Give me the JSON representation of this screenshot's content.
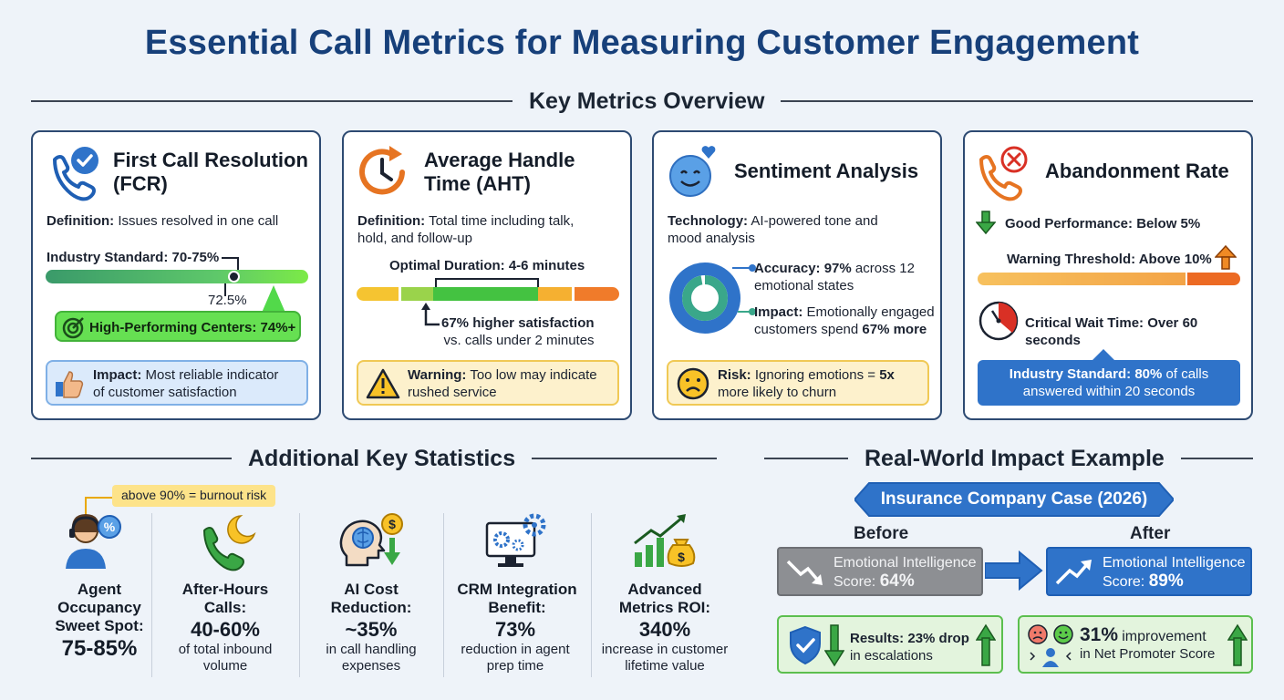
{
  "title": "Essential Call Metrics for Measuring Customer Engagement",
  "overview_title": "Key Metrics Overview",
  "fcr": {
    "title_line1": "First Call Resolution",
    "title_line2": "(FCR)",
    "definition_label": "Definition:",
    "definition_text": "Issues resolved in one call",
    "standard_label": "Industry Standard: 70-75%",
    "marker_value": "72.5%",
    "high_performing": "High-Performing Centers: 74%+",
    "impact_label": "Impact:",
    "impact_text_1": "Most reliable indicator",
    "impact_text_2": "of customer satisfaction"
  },
  "aht": {
    "title_line1": "Average Handle",
    "title_line2": "Time (AHT)",
    "definition_label": "Definition:",
    "definition_text_1": "Total time including talk,",
    "definition_text_2": "hold, and follow-up",
    "optimal": "Optimal Duration: 4-6 minutes",
    "satisfaction_bold": "67% higher satisfaction",
    "satisfaction_rest": "vs. calls under 2 minutes",
    "warning_label": "Warning:",
    "warning_text_1": "Too low may indicate",
    "warning_text_2": "rushed service"
  },
  "sentiment": {
    "title": "Sentiment Analysis",
    "tech_label": "Technology:",
    "tech_text_1": "AI-powered tone and",
    "tech_text_2": "mood analysis",
    "accuracy_label": "Accuracy:",
    "accuracy_value": "97%",
    "accuracy_rest": "across 12",
    "accuracy_line2": "emotional states",
    "donut_fraction": 0.97,
    "impact_label": "Impact:",
    "impact_text_1": "Emotionally engaged",
    "impact_text_2": "customers spend",
    "impact_value": "67% more",
    "risk_label": "Risk:",
    "risk_text_1": "Ignoring emotions =",
    "risk_value": "5x",
    "risk_text_2": "more likely to churn"
  },
  "abandonment": {
    "title": "Abandonment Rate",
    "good": "Good Performance: Below 5%",
    "warning": "Warning Threshold: Above 10%",
    "critical_label": "Critical Wait Time: Over",
    "critical_value": "60 seconds",
    "standard_label": "Industry Standard:",
    "standard_value": "80%",
    "standard_text_1": "of calls",
    "standard_text_2": "answered within 20 seconds"
  },
  "additional_title": "Additional Key Statistics",
  "stats": {
    "occupancy": {
      "note": "above 90% = burnout risk",
      "label_1": "Agent",
      "label_2": "Occupancy",
      "label_3": "Sweet Spot:",
      "value": "75-85%"
    },
    "after_hours": {
      "label_1": "After-Hours",
      "label_2": "Calls:",
      "value": "40-60%",
      "sub_1": "of total inbound",
      "sub_2": "volume"
    },
    "ai_cost": {
      "label_1": "AI Cost",
      "label_2": "Reduction:",
      "value": "~35%",
      "sub_1": "in call handling",
      "sub_2": "expenses"
    },
    "crm": {
      "label_1": "CRM Integration",
      "label_2": "Benefit:",
      "value": "73%",
      "sub_1": "reduction in agent",
      "sub_2": "prep time"
    },
    "roi": {
      "label_1": "Advanced",
      "label_2": "Metrics ROI:",
      "value": "340%",
      "sub_1": "increase in customer",
      "sub_2": "lifetime value"
    }
  },
  "impact_title": "Real-World Impact Example",
  "case": {
    "banner": "Insurance Company Case (2026)",
    "before_label": "Before",
    "after_label": "After",
    "ei_label": "Emotional Intelligence",
    "score_label": "Score:",
    "before_score": "64%",
    "after_score": "89%",
    "results_label": "Results:",
    "results_value": "23% drop",
    "results_text": "in escalations",
    "nps_value": "31%",
    "nps_text_1": "improvement",
    "nps_text_2": "in Net Promoter Score"
  },
  "colors": {
    "brand": "#17407a",
    "accent_blue": "#2f73c9",
    "good_green": "#41c93f",
    "warn_orange": "#f08a24",
    "danger_red": "#d93025"
  }
}
